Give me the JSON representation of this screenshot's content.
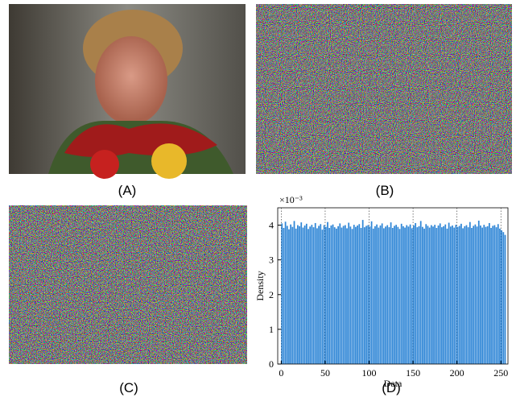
{
  "panels": [
    "(A)",
    "(B)",
    "(C)",
    "(D)"
  ],
  "chart_data": {
    "type": "histogram",
    "xlabel": "Data",
    "ylabel": "Density",
    "y_multiplier": "×10⁻³",
    "color": "#2f86d6",
    "bins": [
      0,
      2,
      4,
      6,
      8,
      10,
      12,
      14,
      16,
      18,
      20,
      22,
      24,
      26,
      28,
      30,
      32,
      34,
      36,
      38,
      40,
      42,
      44,
      46,
      48,
      50,
      52,
      54,
      56,
      58,
      60,
      62,
      64,
      66,
      68,
      70,
      72,
      74,
      76,
      78,
      80,
      82,
      84,
      86,
      88,
      90,
      92,
      94,
      96,
      98,
      100,
      102,
      104,
      106,
      108,
      110,
      112,
      114,
      116,
      118,
      120,
      122,
      124,
      126,
      128,
      130,
      132,
      134,
      136,
      138,
      140,
      142,
      144,
      146,
      148,
      150,
      152,
      154,
      156,
      158,
      160,
      162,
      164,
      166,
      168,
      170,
      172,
      174,
      176,
      178,
      180,
      182,
      184,
      186,
      188,
      190,
      192,
      194,
      196,
      198,
      200,
      202,
      204,
      206,
      208,
      210,
      212,
      214,
      216,
      218,
      220,
      222,
      224,
      226,
      228,
      230,
      232,
      234,
      236,
      238,
      240,
      242,
      244,
      246,
      248,
      250,
      252,
      254,
      256
    ],
    "values": [
      4.05,
      3.92,
      4.1,
      3.98,
      3.88,
      4.02,
      3.95,
      4.12,
      3.9,
      4.0,
      3.97,
      4.08,
      3.93,
      3.99,
      4.04,
      3.89,
      3.96,
      4.01,
      3.94,
      4.06,
      3.91,
      3.98,
      4.03,
      3.87,
      4.0,
      3.95,
      4.09,
      3.92,
      3.99,
      4.02,
      3.94,
      3.9,
      3.97,
      4.05,
      3.93,
      3.98,
      4.0,
      3.91,
      4.07,
      3.96,
      3.89,
      4.01,
      3.95,
      3.99,
      4.03,
      3.92,
      4.15,
      3.94,
      3.98,
      4.0,
      3.96,
      4.11,
      3.9,
      3.97,
      4.02,
      3.93,
      3.99,
      4.05,
      3.91,
      3.96,
      4.0,
      3.94,
      4.08,
      3.92,
      3.98,
      4.01,
      3.95,
      3.89,
      4.04,
      3.97,
      3.93,
      4.0,
      3.96,
      4.02,
      3.91,
      3.99,
      4.06,
      3.94,
      3.97,
      4.12,
      3.95,
      3.9,
      4.03,
      3.98,
      3.93,
      4.0,
      3.96,
      4.01,
      3.92,
      3.99,
      4.05,
      3.94,
      3.97,
      4.02,
      3.9,
      4.07,
      3.96,
      3.99,
      3.93,
      4.01,
      3.95,
      3.98,
      4.04,
      3.91,
      3.97,
      4.0,
      3.94,
      4.09,
      3.92,
      3.98,
      4.02,
      3.96,
      4.13,
      3.99,
      3.93,
      4.01,
      3.95,
      3.97,
      4.06,
      3.92,
      3.98,
      4.0,
      3.94,
      4.03,
      3.9,
      3.85,
      3.8,
      3.72
    ],
    "xlim": [
      -4,
      258
    ],
    "xticks": [
      0,
      50,
      100,
      150,
      200,
      250
    ],
    "ylim": [
      0,
      4.5
    ],
    "yticks": [
      0,
      1,
      2,
      3,
      4
    ],
    "grid": "x"
  }
}
